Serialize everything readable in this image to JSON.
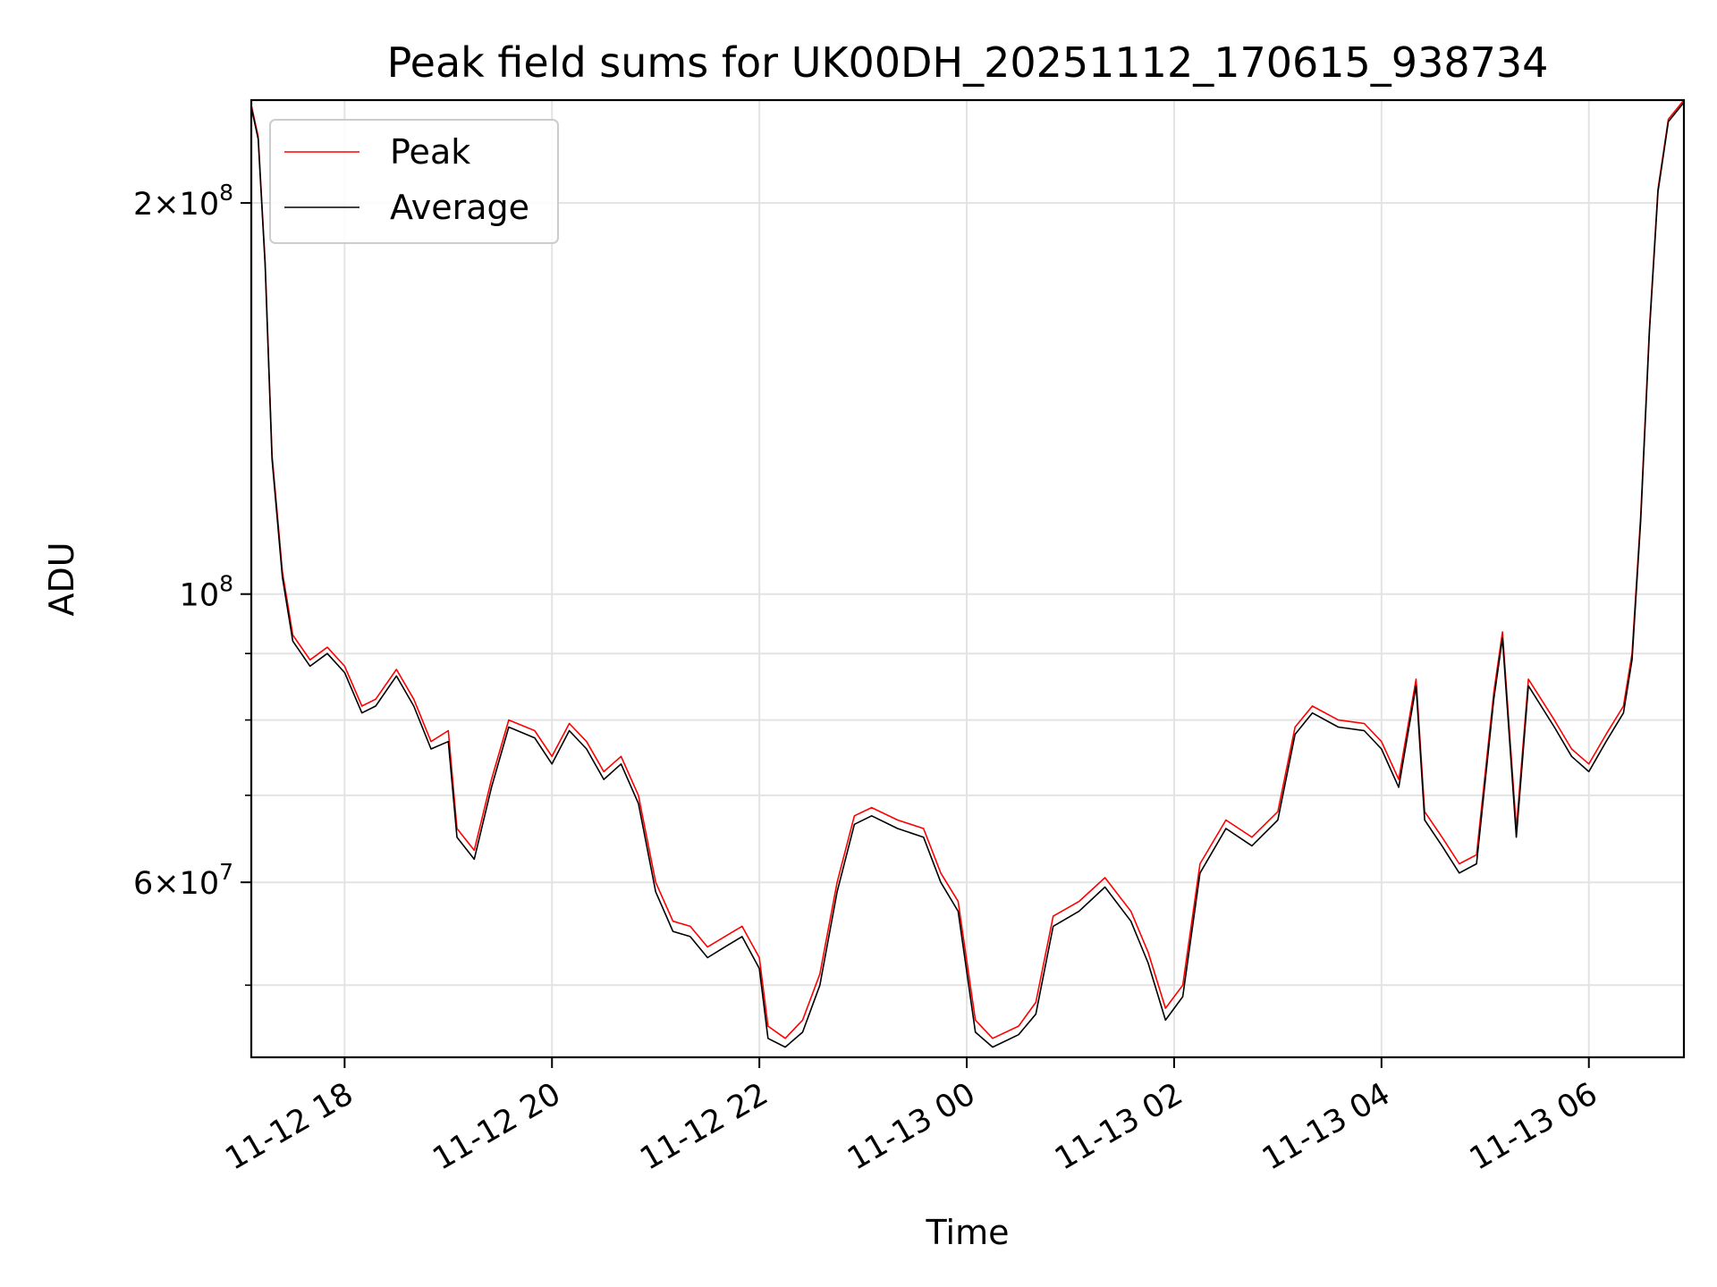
{
  "chart_data": {
    "type": "line",
    "title": "Peak field sums for UK00DH_20251112_170615_938734",
    "xlabel": "Time",
    "ylabel": "ADU",
    "yscale": "log",
    "ylim": [
      44000000,
      240000000
    ],
    "xlim": [
      "2025-11-12T17:06",
      "2025-11-13T06:55"
    ],
    "grid": true,
    "legend_position": "top-left",
    "x_ticks": [
      {
        "t": "2025-11-12T18:00",
        "label": "11-12 18"
      },
      {
        "t": "2025-11-12T20:00",
        "label": "11-12 20"
      },
      {
        "t": "2025-11-12T22:00",
        "label": "11-12 22"
      },
      {
        "t": "2025-11-13T00:00",
        "label": "11-13 00"
      },
      {
        "t": "2025-11-13T02:00",
        "label": "11-13 02"
      },
      {
        "t": "2025-11-13T04:00",
        "label": "11-13 04"
      },
      {
        "t": "2025-11-13T06:00",
        "label": "11-13 06"
      }
    ],
    "y_ticks": [
      {
        "value": 60000000,
        "mant": "6",
        "exp": "7"
      },
      {
        "value": 100000000,
        "mant": "",
        "exp": "8"
      },
      {
        "value": 200000000,
        "mant": "2",
        "exp": "8"
      }
    ],
    "y_minor_ticks": [
      50000000,
      70000000,
      80000000,
      90000000
    ],
    "series": [
      {
        "name": "Peak",
        "color": "#ff0000",
        "points": [
          [
            "2025-11-12T17:06",
            238000000
          ],
          [
            "2025-11-12T17:10",
            225000000
          ],
          [
            "2025-11-12T17:14",
            180000000
          ],
          [
            "2025-11-12T17:18",
            128000000
          ],
          [
            "2025-11-12T17:24",
            104000000
          ],
          [
            "2025-11-12T17:30",
            93000000
          ],
          [
            "2025-11-12T17:40",
            89000000
          ],
          [
            "2025-11-12T17:50",
            91000000
          ],
          [
            "2025-11-12T18:00",
            88000000
          ],
          [
            "2025-11-12T18:10",
            82000000
          ],
          [
            "2025-11-12T18:18",
            83000000
          ],
          [
            "2025-11-12T18:30",
            87500000
          ],
          [
            "2025-11-12T18:40",
            83000000
          ],
          [
            "2025-11-12T18:50",
            77000000
          ],
          [
            "2025-11-12T19:00",
            78500000
          ],
          [
            "2025-11-12T19:05",
            66000000
          ],
          [
            "2025-11-12T19:15",
            63500000
          ],
          [
            "2025-11-12T19:25",
            72000000
          ],
          [
            "2025-11-12T19:35",
            80000000
          ],
          [
            "2025-11-12T19:50",
            78500000
          ],
          [
            "2025-11-12T20:00",
            75000000
          ],
          [
            "2025-11-12T20:10",
            79500000
          ],
          [
            "2025-11-12T20:20",
            77000000
          ],
          [
            "2025-11-12T20:30",
            73000000
          ],
          [
            "2025-11-12T20:40",
            75000000
          ],
          [
            "2025-11-12T20:50",
            70000000
          ],
          [
            "2025-11-12T21:00",
            60000000
          ],
          [
            "2025-11-12T21:10",
            56000000
          ],
          [
            "2025-11-12T21:20",
            55500000
          ],
          [
            "2025-11-12T21:30",
            53500000
          ],
          [
            "2025-11-12T21:40",
            54500000
          ],
          [
            "2025-11-12T21:50",
            55500000
          ],
          [
            "2025-11-12T22:00",
            52500000
          ],
          [
            "2025-11-12T22:05",
            46500000
          ],
          [
            "2025-11-12T22:15",
            45500000
          ],
          [
            "2025-11-12T22:25",
            47000000
          ],
          [
            "2025-11-12T22:35",
            51000000
          ],
          [
            "2025-11-12T22:45",
            60000000
          ],
          [
            "2025-11-12T22:55",
            67500000
          ],
          [
            "2025-11-12T23:05",
            68500000
          ],
          [
            "2025-11-12T23:20",
            67000000
          ],
          [
            "2025-11-12T23:35",
            66000000
          ],
          [
            "2025-11-12T23:45",
            61000000
          ],
          [
            "2025-11-12T23:55",
            58000000
          ],
          [
            "2025-11-13T00:05",
            47000000
          ],
          [
            "2025-11-13T00:15",
            45500000
          ],
          [
            "2025-11-13T00:30",
            46500000
          ],
          [
            "2025-11-13T00:40",
            48500000
          ],
          [
            "2025-11-13T00:50",
            56500000
          ],
          [
            "2025-11-13T01:05",
            58000000
          ],
          [
            "2025-11-13T01:20",
            60500000
          ],
          [
            "2025-11-13T01:35",
            57000000
          ],
          [
            "2025-11-13T01:45",
            53000000
          ],
          [
            "2025-11-13T01:55",
            48000000
          ],
          [
            "2025-11-13T02:05",
            50000000
          ],
          [
            "2025-11-13T02:15",
            62000000
          ],
          [
            "2025-11-13T02:30",
            67000000
          ],
          [
            "2025-11-13T02:45",
            65000000
          ],
          [
            "2025-11-13T03:00",
            68000000
          ],
          [
            "2025-11-13T03:10",
            79000000
          ],
          [
            "2025-11-13T03:20",
            82000000
          ],
          [
            "2025-11-13T03:35",
            80000000
          ],
          [
            "2025-11-13T03:50",
            79500000
          ],
          [
            "2025-11-13T04:00",
            77000000
          ],
          [
            "2025-11-13T04:10",
            72000000
          ],
          [
            "2025-11-13T04:20",
            86000000
          ],
          [
            "2025-11-13T04:25",
            68000000
          ],
          [
            "2025-11-13T04:35",
            65000000
          ],
          [
            "2025-11-13T04:45",
            62000000
          ],
          [
            "2025-11-13T04:55",
            63000000
          ],
          [
            "2025-11-13T05:05",
            84000000
          ],
          [
            "2025-11-13T05:10",
            93500000
          ],
          [
            "2025-11-13T05:18",
            66000000
          ],
          [
            "2025-11-13T05:25",
            86000000
          ],
          [
            "2025-11-13T05:40",
            80000000
          ],
          [
            "2025-11-13T05:50",
            76000000
          ],
          [
            "2025-11-13T06:00",
            74000000
          ],
          [
            "2025-11-13T06:10",
            78000000
          ],
          [
            "2025-11-13T06:20",
            82000000
          ],
          [
            "2025-11-13T06:25",
            90000000
          ],
          [
            "2025-11-13T06:30",
            115000000
          ],
          [
            "2025-11-13T06:35",
            160000000
          ],
          [
            "2025-11-13T06:40",
            205000000
          ],
          [
            "2025-11-13T06:46",
            232000000
          ],
          [
            "2025-11-13T06:55",
            240000000
          ]
        ]
      },
      {
        "name": "Average",
        "color": "#000000",
        "points": [
          [
            "2025-11-12T17:06",
            237000000
          ],
          [
            "2025-11-12T17:10",
            224000000
          ],
          [
            "2025-11-12T17:14",
            179000000
          ],
          [
            "2025-11-12T17:18",
            127000000
          ],
          [
            "2025-11-12T17:24",
            103000000
          ],
          [
            "2025-11-12T17:30",
            92000000
          ],
          [
            "2025-11-12T17:40",
            88000000
          ],
          [
            "2025-11-12T17:50",
            90000000
          ],
          [
            "2025-11-12T18:00",
            87000000
          ],
          [
            "2025-11-12T18:10",
            81000000
          ],
          [
            "2025-11-12T18:18",
            82000000
          ],
          [
            "2025-11-12T18:30",
            86500000
          ],
          [
            "2025-11-12T18:40",
            82000000
          ],
          [
            "2025-11-12T18:50",
            76000000
          ],
          [
            "2025-11-12T19:00",
            77000000
          ],
          [
            "2025-11-12T19:05",
            65000000
          ],
          [
            "2025-11-12T19:15",
            62500000
          ],
          [
            "2025-11-12T19:25",
            71000000
          ],
          [
            "2025-11-12T19:35",
            79000000
          ],
          [
            "2025-11-12T19:50",
            77500000
          ],
          [
            "2025-11-12T20:00",
            74000000
          ],
          [
            "2025-11-12T20:10",
            78500000
          ],
          [
            "2025-11-12T20:20",
            76000000
          ],
          [
            "2025-11-12T20:30",
            72000000
          ],
          [
            "2025-11-12T20:40",
            74000000
          ],
          [
            "2025-11-12T20:50",
            69000000
          ],
          [
            "2025-11-12T21:00",
            59000000
          ],
          [
            "2025-11-12T21:10",
            55000000
          ],
          [
            "2025-11-12T21:20",
            54500000
          ],
          [
            "2025-11-12T21:30",
            52500000
          ],
          [
            "2025-11-12T21:40",
            53500000
          ],
          [
            "2025-11-12T21:50",
            54500000
          ],
          [
            "2025-11-12T22:00",
            51500000
          ],
          [
            "2025-11-12T22:05",
            45500000
          ],
          [
            "2025-11-12T22:15",
            44800000
          ],
          [
            "2025-11-12T22:25",
            46000000
          ],
          [
            "2025-11-12T22:35",
            50000000
          ],
          [
            "2025-11-12T22:45",
            59000000
          ],
          [
            "2025-11-12T22:55",
            66500000
          ],
          [
            "2025-11-12T23:05",
            67500000
          ],
          [
            "2025-11-12T23:20",
            66000000
          ],
          [
            "2025-11-12T23:35",
            65000000
          ],
          [
            "2025-11-12T23:45",
            60000000
          ],
          [
            "2025-11-12T23:55",
            57000000
          ],
          [
            "2025-11-13T00:05",
            46000000
          ],
          [
            "2025-11-13T00:15",
            44800000
          ],
          [
            "2025-11-13T00:30",
            45800000
          ],
          [
            "2025-11-13T00:40",
            47500000
          ],
          [
            "2025-11-13T00:50",
            55500000
          ],
          [
            "2025-11-13T01:05",
            57000000
          ],
          [
            "2025-11-13T01:20",
            59500000
          ],
          [
            "2025-11-13T01:35",
            56000000
          ],
          [
            "2025-11-13T01:45",
            52000000
          ],
          [
            "2025-11-13T01:55",
            47000000
          ],
          [
            "2025-11-13T02:05",
            49000000
          ],
          [
            "2025-11-13T02:15",
            61000000
          ],
          [
            "2025-11-13T02:30",
            66000000
          ],
          [
            "2025-11-13T02:45",
            64000000
          ],
          [
            "2025-11-13T03:00",
            67000000
          ],
          [
            "2025-11-13T03:10",
            78000000
          ],
          [
            "2025-11-13T03:20",
            81000000
          ],
          [
            "2025-11-13T03:35",
            79000000
          ],
          [
            "2025-11-13T03:50",
            78500000
          ],
          [
            "2025-11-13T04:00",
            76000000
          ],
          [
            "2025-11-13T04:10",
            71000000
          ],
          [
            "2025-11-13T04:20",
            85000000
          ],
          [
            "2025-11-13T04:25",
            67000000
          ],
          [
            "2025-11-13T04:35",
            64000000
          ],
          [
            "2025-11-13T04:45",
            61000000
          ],
          [
            "2025-11-13T04:55",
            62000000
          ],
          [
            "2025-11-13T05:05",
            83000000
          ],
          [
            "2025-11-13T05:10",
            92500000
          ],
          [
            "2025-11-13T05:18",
            65000000
          ],
          [
            "2025-11-13T05:25",
            85000000
          ],
          [
            "2025-11-13T05:40",
            79000000
          ],
          [
            "2025-11-13T05:50",
            75000000
          ],
          [
            "2025-11-13T06:00",
            73000000
          ],
          [
            "2025-11-13T06:10",
            77000000
          ],
          [
            "2025-11-13T06:20",
            81000000
          ],
          [
            "2025-11-13T06:25",
            89000000
          ],
          [
            "2025-11-13T06:30",
            114000000
          ],
          [
            "2025-11-13T06:35",
            159000000
          ],
          [
            "2025-11-13T06:40",
            204000000
          ],
          [
            "2025-11-13T06:46",
            231000000
          ],
          [
            "2025-11-13T06:55",
            239000000
          ]
        ]
      }
    ]
  }
}
